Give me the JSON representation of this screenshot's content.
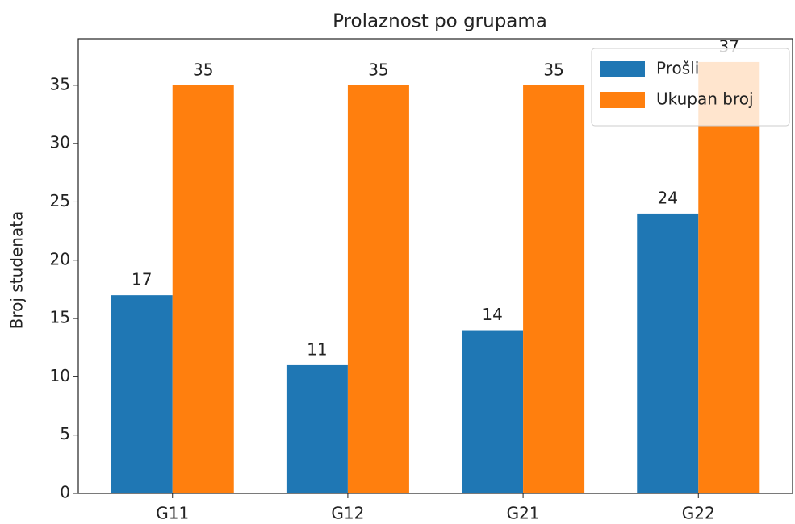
{
  "chart_data": {
    "type": "bar",
    "title": "Prolaznost po grupama",
    "ylabel": "Broj studenata",
    "categories": [
      "G11",
      "G12",
      "G21",
      "G22"
    ],
    "series": [
      {
        "name": "Prošli",
        "color": "#1f77b4",
        "values": [
          17,
          11,
          14,
          24
        ]
      },
      {
        "name": "Ukupan broj",
        "color": "#ff7f0e",
        "values": [
          35,
          35,
          35,
          37
        ]
      }
    ],
    "ylim": [
      0,
      39
    ],
    "yticks": [
      0,
      5,
      10,
      15,
      20,
      25,
      30,
      35
    ],
    "legend": "upper right",
    "grid": false
  }
}
